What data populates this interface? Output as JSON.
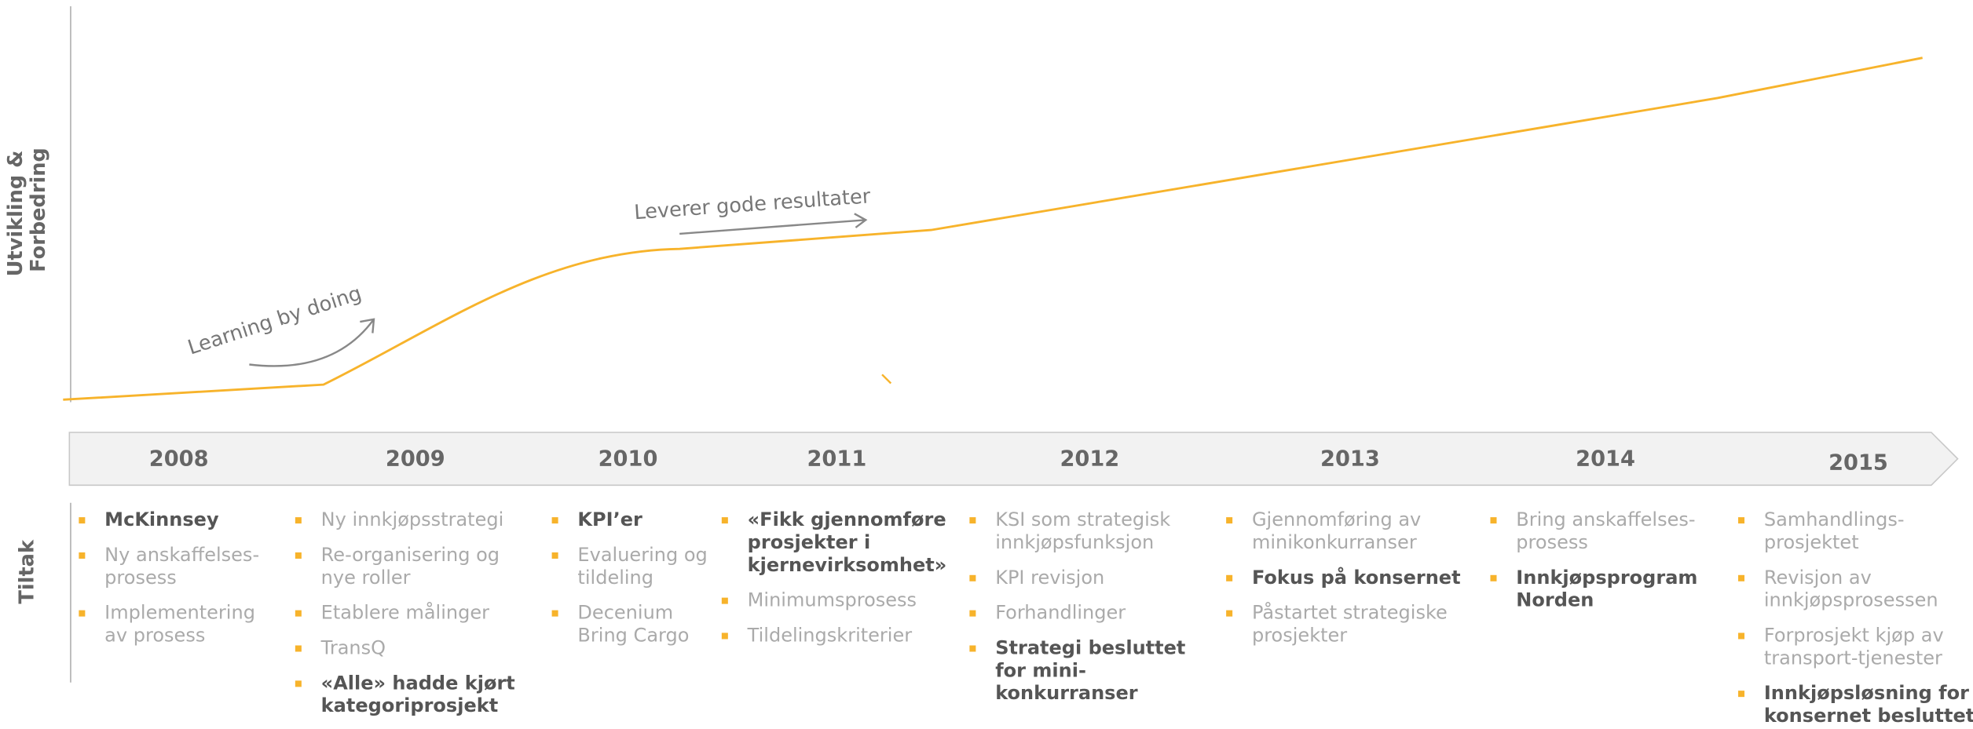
{
  "y_axis_label": [
    "Utvikling &",
    "Forbedring"
  ],
  "annotations": [
    "Learning by doing",
    "Leverer gode resultater"
  ],
  "section_label": "Tiltak",
  "years": [
    "2008",
    "2009",
    "2010",
    "2011",
    "2012",
    "2013",
    "2014",
    "2015"
  ],
  "columns": [
    {
      "items": [
        {
          "lines": [
            "McKinnsey"
          ],
          "bold": true
        },
        {
          "lines": [
            "Ny anskaffelses-",
            "prosess"
          ],
          "bold": false
        },
        {
          "lines": [
            "Implementering",
            "av prosess"
          ],
          "bold": false
        }
      ]
    },
    {
      "items": [
        {
          "lines": [
            "Ny innkjøpsstrategi"
          ],
          "bold": false
        },
        {
          "lines": [
            "Re-organisering og",
            "nye roller"
          ],
          "bold": false
        },
        {
          "lines": [
            "Etablere målinger"
          ],
          "bold": false
        },
        {
          "lines": [
            "TransQ"
          ],
          "bold": false
        },
        {
          "lines": [
            "«Alle» hadde kjørt",
            "kategoriprosjekt"
          ],
          "bold": true
        }
      ]
    },
    {
      "items": [
        {
          "lines": [
            "KPI’er"
          ],
          "bold": true
        },
        {
          "lines": [
            "Evaluering og",
            "tildeling"
          ],
          "bold": false
        },
        {
          "lines": [
            "Decenium",
            "Bring Cargo"
          ],
          "bold": false
        }
      ]
    },
    {
      "items": [
        {
          "lines": [
            "«Fikk gjennomføre",
            "prosjekter i",
            "kjernevirksomhet»"
          ],
          "bold": true
        },
        {
          "lines": [
            "Minimumsprosess"
          ],
          "bold": false
        },
        {
          "lines": [
            "Tildelingskriterier"
          ],
          "bold": false
        }
      ]
    },
    {
      "items": [
        {
          "lines": [
            "KSI som strategisk",
            "innkjøpsfunksjon"
          ],
          "bold": false
        },
        {
          "lines": [
            "KPI revisjon"
          ],
          "bold": false
        },
        {
          "lines": [
            "Forhandlinger"
          ],
          "bold": false
        },
        {
          "lines": [
            "Strategi  besluttet",
            "for mini-",
            "konkurranser"
          ],
          "bold": true
        }
      ]
    },
    {
      "items": [
        {
          "lines": [
            "Gjennomføring av",
            "minikonkurranser"
          ],
          "bold": false
        },
        {
          "lines": [
            "Fokus på konsernet"
          ],
          "bold": true
        },
        {
          "lines": [
            "Påstartet strategiske",
            "prosjekter"
          ],
          "bold": false
        }
      ]
    },
    {
      "items": [
        {
          "lines": [
            "Bring anskaffelses-",
            "prosess"
          ],
          "bold": false
        },
        {
          "lines": [
            "Innkjøpsprogram",
            "Norden"
          ],
          "bold": true
        }
      ]
    },
    {
      "items": [
        {
          "lines": [
            "Samhandlings-",
            "prosjektet"
          ],
          "bold": false
        },
        {
          "lines": [
            "Revisjon av",
            "innkjøpsprosessen"
          ],
          "bold": false
        },
        {
          "lines": [
            "Forprosjekt kjøp av",
            "transport-tjenester"
          ],
          "bold": false
        },
        {
          "lines": [
            "Innkjøpsløsning for",
            "konsernet besluttet"
          ],
          "bold": true
        }
      ]
    }
  ]
}
